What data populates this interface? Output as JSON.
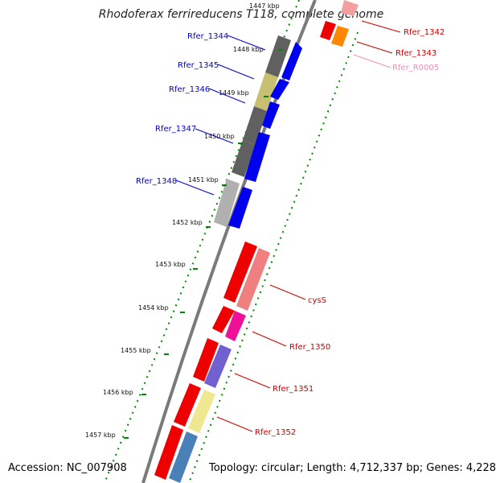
{
  "title": "Rhodoferax ferrireducens T118, complete genome",
  "footer": {
    "accession": "Accession: NC_007908",
    "summary": "Topology: circular; Length: 4,712,337 bp; Genes: 4,228"
  },
  "kbp_ticks": [
    "1447 kbp",
    "1448 kbp",
    "1449 kbp",
    "1450 kbp",
    "1451 kbp",
    "1452 kbp",
    "1453 kbp",
    "1454 kbp",
    "1455 kbp",
    "1456 kbp",
    "1457 kbp"
  ],
  "gene_labels": [
    {
      "text": "Rfer_1344",
      "color": "#0000cc"
    },
    {
      "text": "Rfer_1345",
      "color": "#0000cc"
    },
    {
      "text": "Rfer_1346",
      "color": "#0000cc"
    },
    {
      "text": "Rfer_1347",
      "color": "#0000cc"
    },
    {
      "text": "Rfer_1348",
      "color": "#0000cc"
    },
    {
      "text": "Rfer_1342",
      "color": "#cc0000"
    },
    {
      "text": "Rfer_1343",
      "color": "#cc0000"
    },
    {
      "text": "Rfer_R0005",
      "color": "#f090b0"
    },
    {
      "text": "cysS",
      "color": "#cc0000"
    },
    {
      "text": "Rfer_1350",
      "color": "#cc0000"
    },
    {
      "text": "Rfer_1351",
      "color": "#cc0000"
    },
    {
      "text": "Rfer_1352",
      "color": "#cc0000"
    }
  ],
  "colors": {
    "backbone": "#7a7a7a",
    "minus_cds": "#0000ee",
    "plus_cds": "#ee0000",
    "gc_dots": "#008800"
  }
}
